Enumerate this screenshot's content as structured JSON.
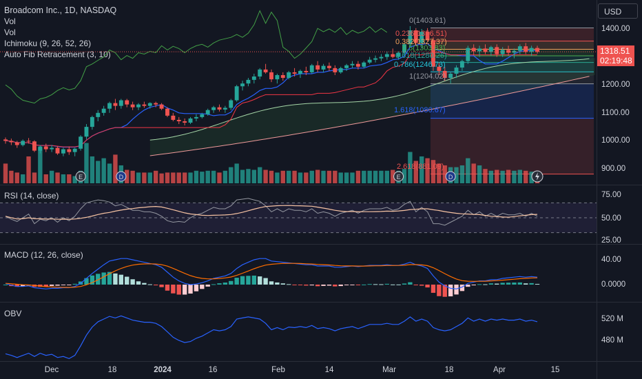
{
  "header": {
    "symbol_title": "Broadcom Inc., 1D, NASDAQ",
    "currency": "USD",
    "price": "1318.51",
    "countdown": "02:19:48"
  },
  "legend": {
    "vol1": "Vol",
    "vol2": "Vol",
    "ichimoku": "Ichimoku (9, 26, 52, 26)",
    "fib": "Auto Fib Retracement (3, 10)",
    "rsi": "RSI (14, close)",
    "macd": "MACD (12, 26, close)",
    "obv": "OBV"
  },
  "fib_levels": [
    {
      "label": "0(1403.61)",
      "value": 1403.61
    },
    {
      "label": "0.236(1356.51)",
      "value": 1356.51
    },
    {
      "label": "0.382(1327.37)",
      "value": 1327.37
    },
    {
      "label": "0.5(1303.83)",
      "value": 1303.83
    },
    {
      "label": "0.618(1280.26)",
      "value": 1280.26
    },
    {
      "label": "0.786(1246.73)",
      "value": 1246.73
    },
    {
      "label": "1(1204.02)",
      "value": 1204.02
    },
    {
      "label": "1.618(1080.67)",
      "value": 1080.67
    },
    {
      "label": "2.618(881.09)",
      "value": 881.09
    }
  ],
  "y_axis": {
    "price": [
      "1400.00",
      "1300.00",
      "1200.00",
      "1100.00",
      "1000.00",
      "900.00"
    ],
    "rsi": [
      "75.00",
      "50.00",
      "25.00"
    ],
    "macd": [
      "40.00",
      "0.0000"
    ],
    "obv": [
      "520 M",
      "480 M"
    ]
  },
  "x_axis": [
    "Dec",
    "18",
    "2024",
    "16",
    "Feb",
    "14",
    "Mar",
    "18",
    "Apr",
    "15"
  ],
  "colors": {
    "up": "#26a69a",
    "down": "#ef5350",
    "bg": "#131722",
    "ichimoku_lead": "#2962ff",
    "ichimoku_lag": "#ef5350",
    "rsi_line": "#9598a1",
    "rsi_ma": "#f7c4a3",
    "macd_line": "#2962ff",
    "signal_line": "#ff6d00",
    "obv_line": "#2962ff"
  },
  "chart_data": {
    "type": "candlestick",
    "ylim": [
      860,
      1420
    ],
    "candles": [
      [
        1005,
        1012,
        990,
        1000
      ],
      [
        1000,
        1008,
        985,
        995
      ],
      [
        995,
        1000,
        975,
        985
      ],
      [
        985,
        1005,
        980,
        1000
      ],
      [
        1000,
        1010,
        990,
        998
      ],
      [
        998,
        1002,
        960,
        965
      ],
      [
        965,
        985,
        955,
        980
      ],
      [
        980,
        990,
        960,
        970
      ],
      [
        970,
        985,
        960,
        975
      ],
      [
        975,
        980,
        950,
        955
      ],
      [
        955,
        975,
        945,
        970
      ],
      [
        970,
        980,
        950,
        960
      ],
      [
        960,
        975,
        945,
        972
      ],
      [
        972,
        1020,
        965,
        1015
      ],
      [
        1015,
        1060,
        1005,
        1050
      ],
      [
        1050,
        1090,
        1040,
        1085
      ],
      [
        1085,
        1110,
        1070,
        1100
      ],
      [
        1100,
        1125,
        1090,
        1115
      ],
      [
        1115,
        1140,
        1100,
        1135
      ],
      [
        1135,
        1150,
        1110,
        1125
      ],
      [
        1125,
        1150,
        1115,
        1145
      ],
      [
        1145,
        1150,
        1120,
        1130
      ],
      [
        1130,
        1140,
        1110,
        1120
      ],
      [
        1120,
        1135,
        1110,
        1130
      ],
      [
        1130,
        1140,
        1118,
        1125
      ],
      [
        1125,
        1138,
        1115,
        1135
      ],
      [
        1135,
        1140,
        1120,
        1130
      ],
      [
        1130,
        1135,
        1110,
        1115
      ],
      [
        1115,
        1120,
        1085,
        1090
      ],
      [
        1090,
        1100,
        1070,
        1075
      ],
      [
        1075,
        1085,
        1060,
        1070
      ],
      [
        1070,
        1080,
        1055,
        1065
      ],
      [
        1065,
        1085,
        1060,
        1080
      ],
      [
        1080,
        1095,
        1070,
        1085
      ],
      [
        1085,
        1100,
        1080,
        1095
      ],
      [
        1095,
        1115,
        1090,
        1110
      ],
      [
        1110,
        1125,
        1100,
        1120
      ],
      [
        1120,
        1130,
        1105,
        1112
      ],
      [
        1112,
        1125,
        1100,
        1118
      ],
      [
        1118,
        1150,
        1110,
        1145
      ],
      [
        1145,
        1200,
        1140,
        1195
      ],
      [
        1195,
        1215,
        1180,
        1205
      ],
      [
        1205,
        1225,
        1195,
        1218
      ],
      [
        1218,
        1240,
        1205,
        1230
      ],
      [
        1230,
        1260,
        1220,
        1255
      ],
      [
        1255,
        1275,
        1240,
        1245
      ],
      [
        1245,
        1255,
        1210,
        1220
      ],
      [
        1220,
        1240,
        1205,
        1235
      ],
      [
        1235,
        1245,
        1215,
        1225
      ],
      [
        1225,
        1250,
        1220,
        1245
      ],
      [
        1245,
        1260,
        1230,
        1240
      ],
      [
        1240,
        1255,
        1225,
        1250
      ],
      [
        1250,
        1265,
        1235,
        1245
      ],
      [
        1245,
        1275,
        1240,
        1270
      ],
      [
        1270,
        1285,
        1245,
        1255
      ],
      [
        1255,
        1275,
        1245,
        1268
      ],
      [
        1268,
        1280,
        1250,
        1260
      ],
      [
        1260,
        1270,
        1235,
        1245
      ],
      [
        1245,
        1265,
        1240,
        1260
      ],
      [
        1260,
        1275,
        1250,
        1270
      ],
      [
        1270,
        1285,
        1260,
        1275
      ],
      [
        1275,
        1285,
        1255,
        1265
      ],
      [
        1265,
        1285,
        1260,
        1280
      ],
      [
        1280,
        1300,
        1275,
        1290
      ],
      [
        1290,
        1305,
        1280,
        1295
      ],
      [
        1295,
        1310,
        1285,
        1300
      ],
      [
        1300,
        1320,
        1290,
        1310
      ],
      [
        1310,
        1330,
        1295,
        1300
      ],
      [
        1300,
        1320,
        1290,
        1315
      ],
      [
        1315,
        1350,
        1305,
        1345
      ],
      [
        1345,
        1410,
        1335,
        1395
      ],
      [
        1395,
        1403,
        1340,
        1350
      ],
      [
        1350,
        1400,
        1330,
        1390
      ],
      [
        1390,
        1403,
        1355,
        1360
      ],
      [
        1360,
        1370,
        1250,
        1265
      ],
      [
        1265,
        1280,
        1235,
        1250
      ],
      [
        1250,
        1265,
        1215,
        1225
      ],
      [
        1225,
        1245,
        1205,
        1240
      ],
      [
        1240,
        1270,
        1225,
        1262
      ],
      [
        1262,
        1290,
        1250,
        1285
      ],
      [
        1285,
        1340,
        1275,
        1332
      ],
      [
        1332,
        1345,
        1305,
        1320
      ],
      [
        1320,
        1340,
        1300,
        1330
      ],
      [
        1330,
        1345,
        1310,
        1318
      ],
      [
        1318,
        1340,
        1305,
        1335
      ],
      [
        1335,
        1345,
        1300,
        1310
      ],
      [
        1310,
        1335,
        1300,
        1325
      ],
      [
        1325,
        1340,
        1305,
        1315
      ],
      [
        1315,
        1330,
        1295,
        1322
      ],
      [
        1322,
        1345,
        1310,
        1338
      ],
      [
        1338,
        1350,
        1310,
        1318
      ],
      [
        1318,
        1340,
        1305,
        1332
      ],
      [
        1332,
        1340,
        1312,
        1318
      ]
    ],
    "volume": [
      22,
      14,
      12,
      10,
      30,
      12,
      40,
      10,
      14,
      12,
      10,
      10,
      8,
      14,
      45,
      30,
      25,
      28,
      22,
      32,
      20,
      15,
      14,
      12,
      12,
      12,
      14,
      11,
      12,
      12,
      12,
      12,
      12,
      14,
      13,
      14,
      14,
      12,
      14,
      18,
      22,
      15,
      16,
      15,
      18,
      15,
      14,
      12,
      14,
      14,
      14,
      12,
      12,
      14,
      15,
      14,
      14,
      14,
      12,
      12,
      12,
      14,
      14,
      14,
      14,
      14,
      14,
      15,
      14,
      16,
      35,
      25,
      30,
      28,
      26,
      22,
      20,
      18,
      18,
      20,
      28,
      22,
      20,
      16,
      14,
      15,
      14,
      15,
      14,
      15,
      14,
      13,
      12
    ],
    "rsi": [
      52,
      48,
      45,
      50,
      55,
      42,
      48,
      46,
      50,
      44,
      50,
      46,
      52,
      62,
      70,
      72,
      74,
      73,
      71,
      66,
      68,
      64,
      60,
      60,
      58,
      58,
      56,
      52,
      46,
      44,
      45,
      44,
      50,
      54,
      56,
      60,
      64,
      62,
      62,
      66,
      74,
      75,
      76,
      74,
      72,
      66,
      58,
      62,
      58,
      62,
      60,
      60,
      58,
      62,
      56,
      58,
      56,
      52,
      56,
      58,
      60,
      56,
      60,
      62,
      62,
      62,
      64,
      60,
      62,
      68,
      72,
      58,
      64,
      58,
      42,
      42,
      40,
      44,
      48,
      52,
      60,
      54,
      58,
      52,
      56,
      52,
      56,
      54,
      54,
      56,
      52,
      56,
      52
    ],
    "macd": [
      2,
      -1,
      -3,
      -3,
      -2,
      -5,
      -6,
      -7,
      -6,
      -6,
      -5,
      -5,
      -3,
      2,
      10,
      18,
      25,
      32,
      38,
      40,
      42,
      42,
      40,
      38,
      36,
      34,
      32,
      28,
      20,
      12,
      6,
      2,
      0,
      1,
      3,
      6,
      10,
      12,
      14,
      18,
      26,
      32,
      36,
      40,
      42,
      42,
      38,
      37,
      36,
      35,
      34,
      33,
      32,
      32,
      30,
      30,
      30,
      28,
      28,
      29,
      30,
      29,
      30,
      31,
      31,
      31,
      32,
      31,
      31,
      33,
      36,
      32,
      30,
      26,
      14,
      4,
      -2,
      -6,
      -7,
      -4,
      2,
      4,
      6,
      6,
      8,
      8,
      10,
      11,
      12,
      13,
      12,
      13,
      12
    ],
    "obv": [
      455,
      452,
      448,
      452,
      456,
      450,
      456,
      452,
      454,
      448,
      450,
      446,
      452,
      470,
      490,
      505,
      515,
      520,
      525,
      522,
      526,
      522,
      518,
      516,
      514,
      514,
      512,
      506,
      496,
      486,
      480,
      476,
      478,
      484,
      488,
      494,
      500,
      498,
      500,
      506,
      520,
      522,
      524,
      522,
      520,
      512,
      500,
      504,
      500,
      505,
      504,
      506,
      504,
      508,
      502,
      504,
      502,
      498,
      502,
      504,
      506,
      502,
      506,
      510,
      510,
      510,
      512,
      510,
      510,
      516,
      524,
      516,
      520,
      516,
      504,
      500,
      498,
      500,
      506,
      512,
      522,
      516,
      520,
      516,
      520,
      518,
      520,
      518,
      518,
      520,
      516,
      518,
      515
    ]
  }
}
